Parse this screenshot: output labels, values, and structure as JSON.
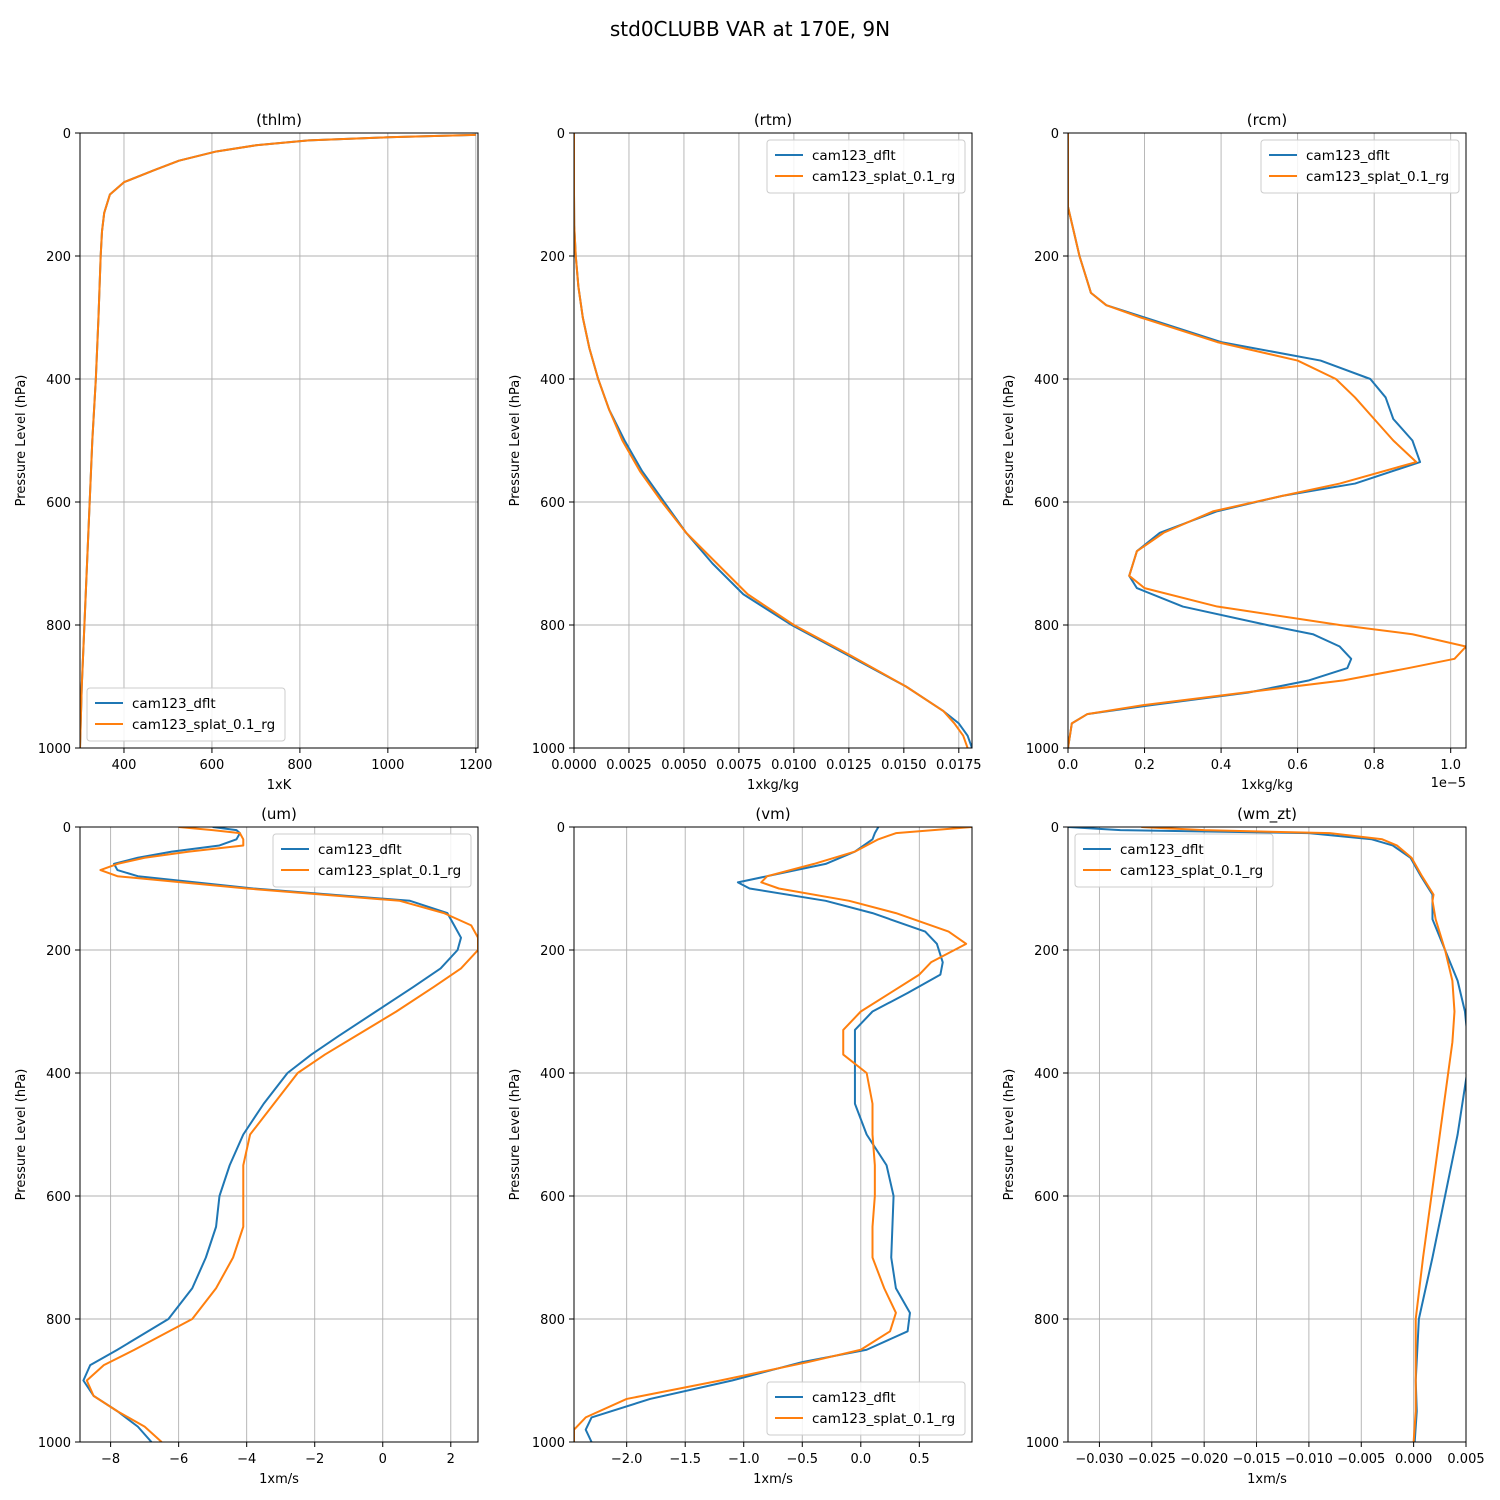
{
  "figure": {
    "title": "std0CLUBB VAR at 170E, 9N"
  },
  "colors": {
    "cam123_dflt": "#1f77b4",
    "cam123_splat_0.1_rg": "#ff7f0e",
    "grid": "#b0b0b0"
  },
  "chart_data": [
    {
      "type": "line",
      "title": "(thlm)",
      "xlabel": "1xK",
      "ylabel": "Pressure Level (hPa)",
      "xlim": [
        300,
        1205
      ],
      "ylim": [
        1000,
        0
      ],
      "xticks": [
        400,
        600,
        800,
        1000,
        1200
      ],
      "xtick_labels": [
        "400",
        "600",
        "800",
        "1000",
        "1200"
      ],
      "yticks": [
        0,
        200,
        400,
        600,
        800,
        1000
      ],
      "ytick_labels": [
        "0",
        "200",
        "400",
        "600",
        "800",
        "1000"
      ],
      "offset_text": "",
      "grid": true,
      "legend_loc": "lower-left",
      "y": [
        3,
        7,
        12,
        20,
        30,
        45,
        60,
        80,
        100,
        130,
        160,
        200,
        300,
        400,
        500,
        600,
        700,
        800,
        900,
        1000
      ],
      "series": [
        {
          "name": "cam123_dflt",
          "values": [
            1200,
            1000,
            820,
            700,
            610,
            525,
            470,
            400,
            368,
            355,
            350,
            347,
            342,
            336,
            328,
            322,
            316,
            310,
            304,
            300
          ]
        },
        {
          "name": "cam123_splat_0.1_rg",
          "values": [
            1200,
            1000,
            820,
            700,
            610,
            525,
            470,
            400,
            368,
            355,
            350,
            347,
            342,
            336,
            328,
            322,
            316,
            310,
            304,
            300
          ]
        }
      ]
    },
    {
      "type": "line",
      "title": "(rtm)",
      "xlabel": "1xkg/kg",
      "ylabel": "Pressure Level (hPa)",
      "xlim": [
        0,
        0.0181
      ],
      "ylim": [
        1000,
        0
      ],
      "xticks": [
        0,
        0.0025,
        0.005,
        0.0075,
        0.01,
        0.0125,
        0.015,
        0.0175
      ],
      "xtick_labels": [
        "0.0000",
        "0.0025",
        "0.0050",
        "0.0075",
        "0.0100",
        "0.0125",
        "0.0150",
        "0.0175"
      ],
      "yticks": [
        0,
        200,
        400,
        600,
        800,
        1000
      ],
      "ytick_labels": [
        "0",
        "200",
        "400",
        "600",
        "800",
        "1000"
      ],
      "offset_text": "",
      "grid": true,
      "legend_loc": "upper-right",
      "y": [
        0,
        100,
        150,
        200,
        250,
        300,
        350,
        400,
        450,
        500,
        550,
        600,
        650,
        700,
        750,
        800,
        850,
        900,
        940,
        960,
        980,
        1000
      ],
      "series": [
        {
          "name": "cam123_dflt",
          "values": [
            0,
            0,
            1e-05,
            8e-05,
            0.0002,
            0.0004,
            0.0007,
            0.0011,
            0.0016,
            0.0023,
            0.0031,
            0.0041,
            0.0051,
            0.0063,
            0.0077,
            0.0099,
            0.0125,
            0.0151,
            0.0168,
            0.0175,
            0.0179,
            0.0181
          ]
        },
        {
          "name": "cam123_splat_0.1_rg",
          "values": [
            0,
            0,
            1e-05,
            8e-05,
            0.0002,
            0.0004,
            0.0007,
            0.0011,
            0.0016,
            0.0022,
            0.003,
            0.004,
            0.0051,
            0.0065,
            0.0079,
            0.01,
            0.0126,
            0.0151,
            0.0168,
            0.0173,
            0.0177,
            0.0179
          ]
        }
      ]
    },
    {
      "type": "line",
      "title": "(rcm)",
      "xlabel": "1xkg/kg",
      "ylabel": "Pressure Level (hPa)",
      "xlim": [
        0,
        1.04e-05
      ],
      "ylim": [
        1000,
        0
      ],
      "xticks": [
        0,
        2e-06,
        4e-06,
        6e-06,
        8e-06,
        1e-05
      ],
      "xtick_labels": [
        "0.0",
        "0.2",
        "0.4",
        "0.6",
        "0.8",
        "1.0"
      ],
      "yticks": [
        0,
        200,
        400,
        600,
        800,
        1000
      ],
      "ytick_labels": [
        "0",
        "200",
        "400",
        "600",
        "800",
        "1000"
      ],
      "offset_text": "1e−5",
      "grid": true,
      "legend_loc": "upper-right",
      "y": [
        0,
        120,
        160,
        200,
        240,
        260,
        280,
        300,
        340,
        370,
        400,
        430,
        465,
        500,
        535,
        570,
        590,
        615,
        650,
        680,
        700,
        720,
        740,
        770,
        800,
        815,
        835,
        855,
        870,
        890,
        910,
        930,
        945,
        960,
        1000
      ],
      "series": [
        {
          "name": "cam123_dflt",
          "values": [
            0,
            0,
            1.5e-07,
            3e-07,
            5e-07,
            6e-07,
            1e-06,
            2e-06,
            4e-06,
            6.6e-06,
            7.9e-06,
            8.3e-06,
            8.5e-06,
            9e-06,
            9.2e-06,
            7.5e-06,
            5.6e-06,
            3.9e-06,
            2.4e-06,
            1.8e-06,
            1.7e-06,
            1.6e-06,
            1.8e-06,
            3e-06,
            5.2e-06,
            6.4e-06,
            7.1e-06,
            7.4e-06,
            7.3e-06,
            6.3e-06,
            4.7e-06,
            2.2e-06,
            5e-07,
            1e-07,
            0
          ]
        },
        {
          "name": "cam123_splat_0.1_rg",
          "values": [
            0,
            0,
            1.5e-07,
            3e-07,
            5e-07,
            6e-07,
            1e-06,
            1.9e-06,
            3.9e-06,
            6e-06,
            7e-06,
            7.5e-06,
            8e-06,
            8.5e-06,
            9.1e-06,
            7.1e-06,
            5.6e-06,
            3.8e-06,
            2.5e-06,
            1.8e-06,
            1.7e-06,
            1.6e-06,
            2e-06,
            3.9e-06,
            7.1e-06,
            9e-06,
            1.04e-05,
            1.01e-05,
            8.9e-06,
            7.2e-06,
            4.6e-06,
            2e-06,
            5e-07,
            1e-07,
            0
          ]
        }
      ]
    },
    {
      "type": "line",
      "title": "(um)",
      "xlabel": "1xm/s",
      "ylabel": "Pressure Level (hPa)",
      "xlim": [
        -8.9,
        2.8
      ],
      "ylim": [
        1000,
        0
      ],
      "xticks": [
        -8,
        -6,
        -4,
        -2,
        0,
        2
      ],
      "xtick_labels": [
        "−8",
        "−6",
        "−4",
        "−2",
        "0",
        "2"
      ],
      "yticks": [
        0,
        200,
        400,
        600,
        800,
        1000
      ],
      "ytick_labels": [
        "0",
        "200",
        "400",
        "600",
        "800",
        "1000"
      ],
      "offset_text": "",
      "grid": true,
      "legend_loc": "upper-right",
      "y": [
        0,
        5,
        10,
        20,
        30,
        40,
        50,
        60,
        70,
        80,
        100,
        120,
        140,
        160,
        180,
        200,
        230,
        260,
        300,
        340,
        370,
        400,
        450,
        500,
        550,
        600,
        650,
        700,
        750,
        800,
        850,
        875,
        900,
        925,
        950,
        975,
        1000
      ],
      "series": [
        {
          "name": "cam123_dflt",
          "values": [
            -5,
            -4.3,
            -4.2,
            -4.3,
            -4.8,
            -6.2,
            -7.2,
            -7.9,
            -7.8,
            -7.2,
            -3.8,
            0.8,
            1.9,
            2.1,
            2.3,
            2.2,
            1.7,
            0.9,
            -0.2,
            -1.3,
            -2.1,
            -2.8,
            -3.5,
            -4.1,
            -4.5,
            -4.8,
            -4.9,
            -5.2,
            -5.6,
            -6.3,
            -7.8,
            -8.6,
            -8.8,
            -8.5,
            -7.8,
            -7.2,
            -6.8
          ]
        },
        {
          "name": "cam123_splat_0.1_rg",
          "values": [
            -6,
            -5,
            -4.2,
            -4.1,
            -4.1,
            -5.7,
            -7.0,
            -7.8,
            -8.3,
            -7.8,
            -4.0,
            0.5,
            1.8,
            2.6,
            2.8,
            2.8,
            2.3,
            1.5,
            0.4,
            -0.8,
            -1.7,
            -2.5,
            -3.2,
            -3.9,
            -4.1,
            -4.1,
            -4.1,
            -4.4,
            -4.9,
            -5.6,
            -7.3,
            -8.2,
            -8.7,
            -8.5,
            -7.8,
            -7.0,
            -6.5
          ]
        }
      ]
    },
    {
      "type": "line",
      "title": "(vm)",
      "xlabel": "1xm/s",
      "ylabel": "Pressure Level (hPa)",
      "xlim": [
        -2.45,
        0.95
      ],
      "ylim": [
        1000,
        0
      ],
      "xticks": [
        -2.0,
        -1.5,
        -1.0,
        -0.5,
        0.0,
        0.5
      ],
      "xtick_labels": [
        "−2.0",
        "−1.5",
        "−1.0",
        "−0.5",
        "0.0",
        "0.5"
      ],
      "yticks": [
        0,
        200,
        400,
        600,
        800,
        1000
      ],
      "ytick_labels": [
        "0",
        "200",
        "400",
        "600",
        "800",
        "1000"
      ],
      "offset_text": "",
      "grid": true,
      "legend_loc": "lower-right",
      "y": [
        0,
        10,
        20,
        40,
        60,
        80,
        90,
        100,
        120,
        140,
        170,
        190,
        220,
        240,
        270,
        300,
        330,
        350,
        370,
        400,
        450,
        500,
        550,
        600,
        650,
        700,
        750,
        790,
        820,
        850,
        870,
        900,
        930,
        960,
        980,
        1000
      ],
      "series": [
        {
          "name": "cam123_dflt",
          "values": [
            0.15,
            0.12,
            0.1,
            -0.05,
            -0.3,
            -0.8,
            -1.05,
            -0.95,
            -0.3,
            0.1,
            0.55,
            0.65,
            0.7,
            0.68,
            0.4,
            0.1,
            -0.05,
            -0.05,
            -0.05,
            -0.05,
            -0.05,
            0.05,
            0.22,
            0.28,
            0.27,
            0.26,
            0.3,
            0.42,
            0.4,
            0.05,
            -0.5,
            -1.1,
            -1.8,
            -2.3,
            -2.35,
            -2.3
          ]
        },
        {
          "name": "cam123_splat_0.1_rg",
          "values": [
            0.95,
            0.3,
            0.15,
            -0.05,
            -0.4,
            -0.8,
            -0.85,
            -0.7,
            -0.1,
            0.3,
            0.75,
            0.9,
            0.6,
            0.5,
            0.25,
            0.0,
            -0.15,
            -0.15,
            -0.15,
            0.05,
            0.1,
            0.1,
            0.12,
            0.12,
            0.1,
            0.1,
            0.2,
            0.3,
            0.25,
            0.0,
            -0.45,
            -1.2,
            -2.0,
            -2.35,
            -2.45,
            -2.45
          ]
        }
      ]
    },
    {
      "type": "line",
      "title": "(wm_zt)",
      "xlabel": "1xm/s",
      "ylabel": "Pressure Level (hPa)",
      "xlim": [
        -0.033,
        0.005
      ],
      "ylim": [
        1000,
        0
      ],
      "xticks": [
        -0.03,
        -0.025,
        -0.02,
        -0.015,
        -0.01,
        -0.005,
        0.0,
        0.005
      ],
      "xtick_labels": [
        "−0.030",
        "−0.025",
        "−0.020",
        "−0.015",
        "−0.010",
        "−0.005",
        "0.000",
        "0.005"
      ],
      "yticks": [
        0,
        200,
        400,
        600,
        800,
        1000
      ],
      "ytick_labels": [
        "0",
        "200",
        "400",
        "600",
        "800",
        "1000"
      ],
      "offset_text": "",
      "grid": true,
      "legend_loc": "upper-left",
      "y": [
        0,
        5,
        10,
        20,
        30,
        50,
        80,
        110,
        120,
        150,
        200,
        250,
        300,
        350,
        400,
        500,
        600,
        700,
        800,
        900,
        950,
        1000
      ],
      "series": [
        {
          "name": "cam123_dflt",
          "values": [
            -0.033,
            -0.028,
            -0.01,
            -0.004,
            -0.002,
            -0.0003,
            0.0007,
            0.0018,
            0.0018,
            0.0018,
            0.003,
            0.0042,
            0.0049,
            0.0052,
            0.0051,
            0.0042,
            0.003,
            0.0018,
            0.0005,
            0.0002,
            0.0003,
            0.0001
          ]
        },
        {
          "name": "cam123_splat_0.1_rg",
          "values": [
            -0.026,
            -0.02,
            -0.008,
            -0.003,
            -0.0016,
            -0.0002,
            0.0008,
            0.0019,
            0.0018,
            0.0021,
            0.003,
            0.0037,
            0.0039,
            0.0037,
            0.0033,
            0.0025,
            0.0017,
            0.0009,
            0.0002,
            0.0002,
            0.0002,
            0.0
          ]
        }
      ]
    }
  ]
}
